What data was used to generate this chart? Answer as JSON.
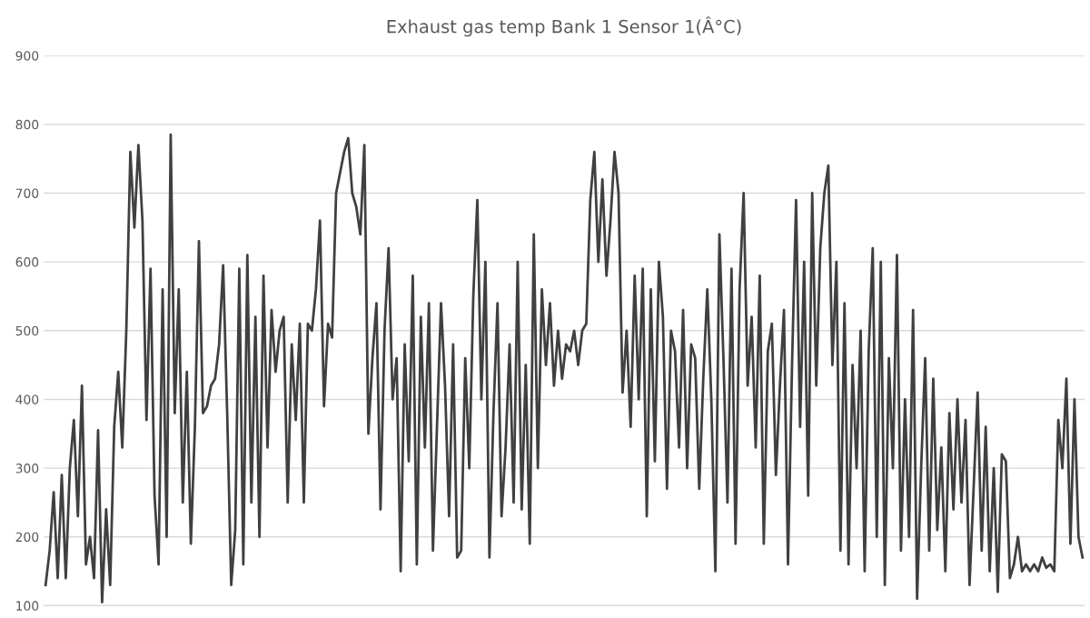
{
  "chart_data": {
    "type": "line",
    "title": "Exhaust gas temp Bank 1 Sensor 1(Â°C)",
    "categories": [
      null,
      null,
      null,
      null,
      null,
      null,
      null,
      null,
      null,
      null,
      null,
      null,
      null,
      null,
      null,
      null,
      null,
      null,
      null,
      null,
      null,
      null,
      null,
      null,
      null,
      null,
      null,
      null,
      null,
      null,
      null,
      null,
      null,
      null,
      null,
      null,
      null,
      null,
      null,
      null,
      null,
      null,
      null,
      null,
      null,
      null,
      null,
      null,
      null,
      null,
      null,
      null,
      null,
      null,
      null,
      null,
      null,
      null,
      null,
      null,
      null,
      null,
      null,
      null,
      null,
      null,
      null,
      null,
      null,
      null,
      null,
      null,
      null,
      null,
      null,
      null,
      null,
      null,
      null,
      null,
      null,
      null,
      null,
      null,
      null,
      null,
      null,
      null,
      null,
      null,
      null,
      null,
      null,
      null,
      null,
      null,
      null,
      null,
      null,
      null,
      null,
      null,
      null,
      null,
      null,
      null,
      null,
      null,
      null,
      null,
      null,
      null,
      null,
      null,
      null,
      null,
      null,
      null,
      null,
      null,
      null,
      null,
      null,
      null,
      null,
      null,
      null,
      null,
      null,
      null,
      null,
      null,
      null,
      null,
      null,
      null,
      null,
      null,
      null,
      null,
      null,
      null,
      null,
      null,
      null,
      null,
      null,
      null,
      null,
      null,
      null,
      null,
      null,
      null,
      null,
      null,
      null,
      null,
      null,
      null,
      null,
      null,
      null,
      null,
      null,
      null,
      null,
      null,
      null,
      null,
      null,
      null,
      null,
      null,
      null,
      null,
      null,
      null,
      null,
      null,
      null,
      null,
      null,
      null,
      null,
      null,
      null,
      null,
      null,
      null,
      null,
      null,
      null,
      null,
      null,
      null,
      null,
      null,
      null,
      null,
      null,
      null,
      null,
      null,
      null,
      null,
      null,
      null,
      null,
      null,
      null,
      null,
      null,
      null,
      null,
      null,
      null,
      null,
      null,
      null,
      null,
      null,
      null,
      null,
      null,
      null,
      null,
      null,
      null,
      null,
      null,
      null,
      null,
      null,
      null,
      null,
      null,
      null,
      null,
      null,
      null,
      null,
      null,
      null,
      null,
      null,
      null,
      null,
      null,
      null,
      null,
      null,
      null,
      null,
      null,
      null,
      null,
      null
    ],
    "series": [
      {
        "color": "#404040",
        "values": [
          130,
          180,
          265,
          140,
          290,
          140,
          300,
          370,
          230,
          420,
          160,
          200,
          140,
          355,
          105,
          240,
          130,
          360,
          440,
          330,
          500,
          760,
          650,
          770,
          660,
          370,
          590,
          260,
          160,
          560,
          200,
          785,
          380,
          560,
          250,
          440,
          190,
          360,
          630,
          380,
          390,
          420,
          430,
          480,
          595,
          380,
          130,
          210,
          590,
          160,
          610,
          250,
          520,
          200,
          580,
          330,
          530,
          440,
          500,
          520,
          250,
          480,
          370,
          510,
          250,
          510,
          500,
          560,
          660,
          390,
          510,
          490,
          700,
          730,
          760,
          780,
          700,
          680,
          640,
          770,
          350,
          460,
          540,
          240,
          500,
          620,
          400,
          460,
          150,
          480,
          310,
          580,
          160,
          520,
          330,
          540,
          180,
          360,
          540,
          420,
          230,
          480,
          170,
          180,
          460,
          300,
          550,
          690,
          400,
          600,
          170,
          380,
          540,
          230,
          330,
          480,
          250,
          600,
          240,
          450,
          190,
          640,
          300,
          560,
          450,
          540,
          420,
          500,
          430,
          480,
          470,
          500,
          450,
          500,
          510,
          690,
          760,
          600,
          720,
          580,
          660,
          760,
          700,
          410,
          500,
          360,
          580,
          400,
          590,
          230,
          560,
          310,
          600,
          520,
          270,
          500,
          470,
          330,
          530,
          300,
          480,
          460,
          270,
          430,
          560,
          400,
          150,
          640,
          460,
          250,
          590,
          190,
          560,
          700,
          420,
          520,
          330,
          580,
          190,
          470,
          510,
          290,
          420,
          530,
          160,
          450,
          690,
          360,
          600,
          260,
          700,
          420,
          620,
          700,
          740,
          450,
          600,
          180,
          540,
          160,
          450,
          300,
          500,
          150,
          470,
          620,
          200,
          600,
          130,
          460,
          300,
          610,
          180,
          400,
          200,
          530,
          110,
          300,
          460,
          180,
          430,
          210,
          330,
          150,
          380,
          240,
          400,
          250,
          370,
          130,
          270,
          410,
          180,
          360,
          150,
          300,
          120,
          320,
          310,
          140,
          160,
          200,
          150,
          160,
          150,
          160,
          150,
          170,
          155,
          160,
          150,
          370,
          300,
          430,
          190,
          400,
          200,
          170
        ]
      }
    ],
    "ylim": [
      100,
      900
    ],
    "yticks": [
      100,
      200,
      300,
      400,
      500,
      600,
      700,
      800,
      900
    ],
    "grid": "y",
    "line_style": "solid",
    "marker": "none"
  }
}
